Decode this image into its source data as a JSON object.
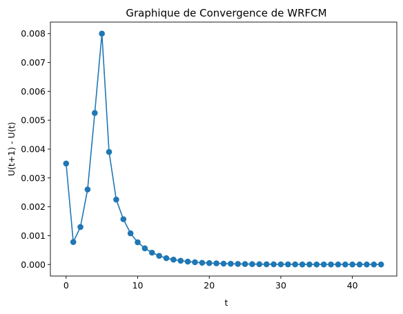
{
  "chart_data": {
    "type": "line",
    "title": "Graphique de Convergence de WRFCM",
    "xlabel": "t",
    "ylabel": "U(t+1) - U(t)",
    "xlim": [
      -2.2,
      46.2
    ],
    "ylim": [
      -0.0004,
      0.0084
    ],
    "x_ticks": [
      0,
      10,
      20,
      30,
      40
    ],
    "y_ticks": [
      0.0,
      0.001,
      0.002,
      0.003,
      0.004,
      0.005,
      0.006,
      0.007,
      0.008
    ],
    "x_tick_labels": [
      "0",
      "10",
      "20",
      "30",
      "40"
    ],
    "y_tick_labels": [
      "0.000",
      "0.001",
      "0.002",
      "0.003",
      "0.004",
      "0.005",
      "0.006",
      "0.007",
      "0.008"
    ],
    "grid": false,
    "color": "#1f77b4",
    "marker": "circle",
    "series": [
      {
        "x": [
          0,
          1,
          2,
          3,
          4,
          5,
          6,
          7,
          8,
          9,
          10,
          11,
          12,
          13,
          14,
          15,
          16,
          17,
          18,
          19,
          20,
          21,
          22,
          23,
          24,
          25,
          26,
          27,
          28,
          29,
          30,
          31,
          32,
          33,
          34,
          35,
          36,
          37,
          38,
          39,
          40,
          41,
          42,
          43,
          44
        ],
        "values": [
          0.0035,
          0.00078,
          0.0013,
          0.0026,
          0.00525,
          0.008,
          0.0039,
          0.00225,
          0.00157,
          0.00108,
          0.00077,
          0.00056,
          0.00041,
          0.0003,
          0.00022,
          0.00017,
          0.00013,
          0.0001,
          8e-05,
          6e-05,
          5e-05,
          4e-05,
          3e-05,
          2.5e-05,
          2e-05,
          1.6e-05,
          1.3e-05,
          1e-05,
          8e-06,
          7e-06,
          6e-06,
          5e-06,
          4e-06,
          3e-06,
          3e-06,
          2e-06,
          2e-06,
          2e-06,
          1e-06,
          1e-06,
          1e-06,
          1e-06,
          1e-06,
          1e-06,
          1e-06
        ]
      }
    ]
  }
}
